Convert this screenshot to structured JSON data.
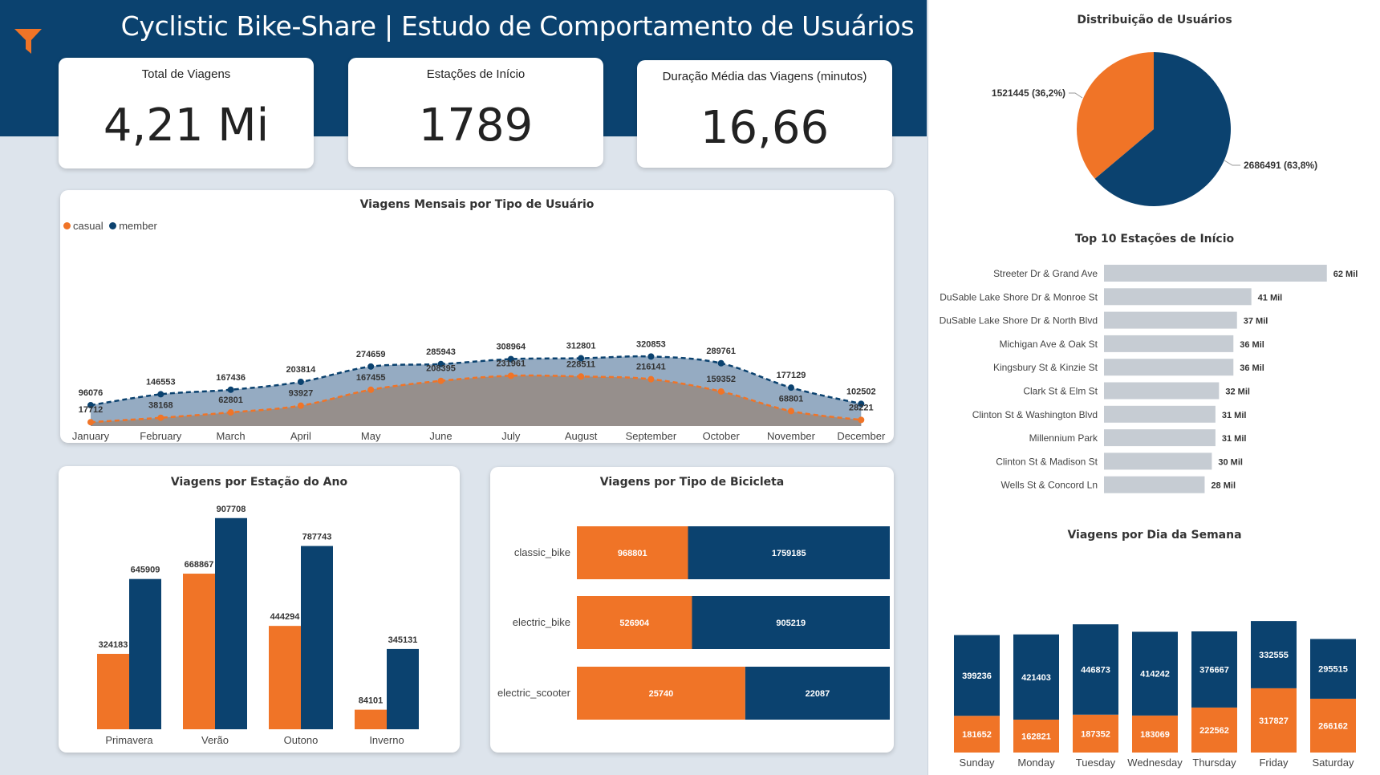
{
  "header": {
    "title": "Cyclistic Bike-Share | Estudo de Comportamento de Usuários"
  },
  "colors": {
    "casual": "#f07427",
    "member": "#0b426f",
    "header": "#0b426f",
    "station_bar": "#c6ccd3"
  },
  "kpis": [
    {
      "label": "Total de Viagens",
      "value": "4,21 Mi"
    },
    {
      "label": "Estações de Início",
      "value": "1789"
    },
    {
      "label": "Duração Média das Viagens (minutos)",
      "value": "16,66"
    }
  ],
  "legend": {
    "casual": "casual",
    "member": "member"
  },
  "chart_data": [
    {
      "id": "monthly",
      "type": "area",
      "title": "Viagens Mensais por Tipo de Usuário",
      "categories": [
        "January",
        "February",
        "March",
        "April",
        "May",
        "June",
        "July",
        "August",
        "September",
        "October",
        "November",
        "December"
      ],
      "series": [
        {
          "name": "casual",
          "values": [
            17712,
            38168,
            62801,
            93927,
            167455,
            208395,
            231961,
            228511,
            216141,
            159352,
            68801,
            28221
          ]
        },
        {
          "name": "member",
          "values": [
            96076,
            146553,
            167436,
            203814,
            274659,
            285943,
            308964,
            312801,
            320853,
            289761,
            177129,
            102502
          ]
        }
      ],
      "legend_position": "top-left"
    },
    {
      "id": "pie",
      "type": "pie",
      "title": "Distribuição de Usuários",
      "slices": [
        {
          "name": "casual",
          "value": 1521445,
          "label": "1521445 (36,2%)"
        },
        {
          "name": "member",
          "value": 2686491,
          "label": "2686491 (63,8%)"
        }
      ]
    },
    {
      "id": "stations",
      "type": "bar",
      "orientation": "horizontal",
      "title": "Top 10 Estações de Início",
      "categories": [
        "Streeter Dr & Grand Ave",
        "DuSable Lake Shore Dr & Monroe St",
        "DuSable Lake Shore Dr & North Blvd",
        "Michigan Ave & Oak St",
        "Kingsbury St & Kinzie St",
        "Clark St & Elm St",
        "Clinton St & Washington Blvd",
        "Millennium Park",
        "Clinton St & Madison St",
        "Wells St & Concord Ln"
      ],
      "values": [
        62,
        41,
        37,
        36,
        36,
        32,
        31,
        31,
        30,
        28
      ],
      "value_labels": [
        "62 Mil",
        "41 Mil",
        "37 Mil",
        "36 Mil",
        "36 Mil",
        "32 Mil",
        "31 Mil",
        "31 Mil",
        "30 Mil",
        "28 Mil"
      ]
    },
    {
      "id": "seasons",
      "type": "bar",
      "title": "Viagens por Estação do Ano",
      "categories": [
        "Primavera",
        "Verão",
        "Outono",
        "Inverno"
      ],
      "series": [
        {
          "name": "casual",
          "values": [
            324183,
            668867,
            444294,
            84101
          ]
        },
        {
          "name": "member",
          "values": [
            645909,
            907708,
            787743,
            345131
          ]
        }
      ]
    },
    {
      "id": "bikes",
      "type": "bar",
      "orientation": "horizontal",
      "stacking": "percent",
      "title": "Viagens por Tipo de Bicicleta",
      "categories": [
        "classic_bike",
        "electric_bike",
        "electric_scooter"
      ],
      "series": [
        {
          "name": "casual",
          "values": [
            968801,
            526904,
            25740
          ]
        },
        {
          "name": "member",
          "values": [
            1759185,
            905219,
            22087
          ]
        }
      ]
    },
    {
      "id": "weekdays",
      "type": "bar",
      "stacking": "stacked",
      "title": "Viagens por Dia da Semana",
      "categories": [
        "Sunday",
        "Monday",
        "Tuesday",
        "Wednesday",
        "Thursday",
        "Friday",
        "Saturday"
      ],
      "series": [
        {
          "name": "casual",
          "values": [
            181652,
            162821,
            187352,
            183069,
            222562,
            317827,
            266162
          ]
        },
        {
          "name": "member",
          "values": [
            399236,
            421403,
            446873,
            414242,
            376667,
            332555,
            295515
          ]
        }
      ]
    }
  ]
}
